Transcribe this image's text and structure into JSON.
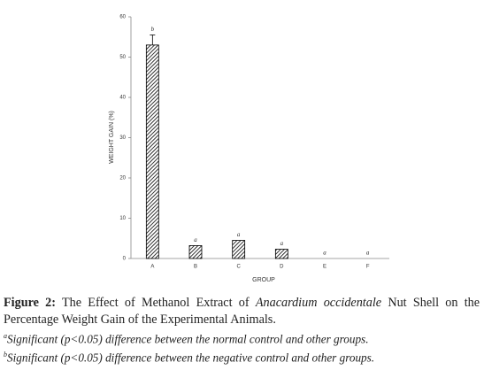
{
  "chart_data": {
    "type": "bar",
    "categories": [
      "A",
      "B",
      "C",
      "D",
      "E",
      "F"
    ],
    "values": [
      53,
      3.2,
      4.5,
      2.3,
      0,
      0
    ],
    "errors": [
      2.5,
      null,
      null,
      null,
      null,
      null
    ],
    "annotations": [
      "b",
      "a",
      "a",
      "a",
      "a",
      "a"
    ],
    "color": "#000000",
    "ylim": [
      0,
      60
    ],
    "yticks": [
      0,
      10,
      20,
      30,
      40,
      50,
      60
    ],
    "xlabel": "GROUP",
    "ylabel": "WEIGHT GAIN (%)",
    "grid": false
  },
  "caption": {
    "label": "Figure 2:",
    "text_1": "The Effect of Methanol Extract of",
    "italic": "Anacardium occidentale",
    "text_2": "Nut Shell on the Percentage Weight Gain of the Experimental Animals.",
    "notes": [
      {
        "mark": "a",
        "text": "Significant (p<0.05) difference between the normal control and other groups."
      },
      {
        "mark": "b",
        "text": "Significant (p<0.05) difference between the negative control and other groups."
      }
    ]
  }
}
